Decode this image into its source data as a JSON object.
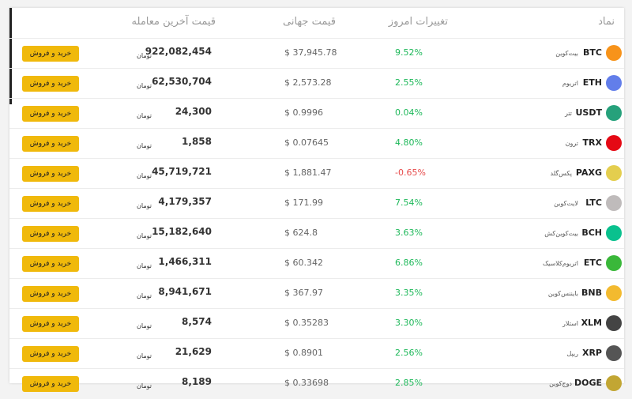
{
  "table": {
    "headers": {
      "symbol": "نماد",
      "change": "تغییرات امروز",
      "global": "قیمت جهانی",
      "last": "قیمت آخرین معامله"
    },
    "unit": "تومان",
    "button": "خرید و فروش",
    "rows": [
      {
        "symbol": "BTC",
        "name": "بیت‌کوین",
        "change": "9.52%",
        "global": "$ 37,945.78",
        "last": "922,082,454",
        "color": "#f7931a"
      },
      {
        "symbol": "ETH",
        "name": "اتریوم",
        "change": "2.55%",
        "global": "$ 2,573.28",
        "last": "62,530,704",
        "color": "#627eea"
      },
      {
        "symbol": "USDT",
        "name": "تتر",
        "change": "0.04%",
        "global": "$ 0.9996",
        "last": "24,300",
        "color": "#26a17b"
      },
      {
        "symbol": "TRX",
        "name": "ترون",
        "change": "4.80%",
        "global": "$ 0.07645",
        "last": "1,858",
        "color": "#e50914"
      },
      {
        "symbol": "PAXG",
        "name": "پکس‌گلد",
        "change": "-0.65%",
        "global": "$ 1,881.47",
        "last": "45,719,721",
        "color": "#e4ce4e"
      },
      {
        "symbol": "LTC",
        "name": "لایت‌کوین",
        "change": "7.54%",
        "global": "$ 171.99",
        "last": "4,179,357",
        "color": "#bfbbbb"
      },
      {
        "symbol": "BCH",
        "name": "بیت‌کوین‌کش",
        "change": "3.63%",
        "global": "$ 624.8",
        "last": "15,182,640",
        "color": "#0ac18e"
      },
      {
        "symbol": "ETC",
        "name": "اتریوم‌کلاسیک",
        "change": "6.86%",
        "global": "$ 60.342",
        "last": "1,466,311",
        "color": "#3ab83a"
      },
      {
        "symbol": "BNB",
        "name": "بایننس‌کوین",
        "change": "3.35%",
        "global": "$ 367.97",
        "last": "8,941,671",
        "color": "#f3ba2f"
      },
      {
        "symbol": "XLM",
        "name": "استلار",
        "change": "3.30%",
        "global": "$ 0.35283",
        "last": "8,574",
        "color": "#444444"
      },
      {
        "symbol": "XRP",
        "name": "ریپل",
        "change": "2.56%",
        "global": "$ 0.8901",
        "last": "21,629",
        "color": "#555555"
      },
      {
        "symbol": "DOGE",
        "name": "دوج‌کوین",
        "change": "2.85%",
        "global": "$ 0.33698",
        "last": "8,189",
        "color": "#c2a633"
      }
    ]
  }
}
